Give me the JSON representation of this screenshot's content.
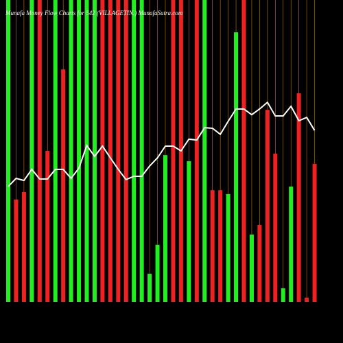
{
  "chart_data": {
    "type": "bar-line",
    "title": "Munafa Money Flow Charts for 542 (VILLAGETIN.) MunafaSutra.com",
    "categories": [
      null,
      null,
      null,
      null,
      null,
      null,
      null,
      null,
      null,
      null,
      null,
      null,
      null,
      null,
      null,
      null,
      null,
      null,
      null,
      null,
      null,
      null,
      null,
      null,
      null,
      null,
      null,
      null,
      null,
      null,
      null,
      null,
      null,
      null,
      null,
      null,
      null,
      null,
      null,
      null
    ],
    "values": [
      100,
      33.9,
      36.4,
      100,
      100,
      50,
      100,
      77,
      100,
      100,
      100,
      100,
      100,
      100,
      100,
      100,
      100,
      100,
      9.3,
      18.9,
      48.6,
      100,
      100,
      46.6,
      100,
      100,
      37,
      37,
      35.7,
      89.3,
      100,
      22.3,
      25.5,
      63.6,
      49.1,
      4.5,
      38.2,
      69.1,
      1.4,
      45.7
    ],
    "colors": [
      "#22ee22",
      "#ee2222",
      "#ee2222",
      "#22ee22",
      "#ee2222",
      "#ee2222",
      "#22ee22",
      "#ee2222",
      "#22ee22",
      "#22ee22",
      "#22ee22",
      "#22ee22",
      "#ee2222",
      "#ee2222",
      "#ee2222",
      "#ee2222",
      "#22ee22",
      "#22ee22",
      "#22ee22",
      "#22ee22",
      "#22ee22",
      "#ee2222",
      "#ee2222",
      "#22ee22",
      "#ee2222",
      "#22ee22",
      "#ee2222",
      "#ee2222",
      "#22ee22",
      "#22ee22",
      "#ee2222",
      "#22ee22",
      "#ee2222",
      "#ee2222",
      "#ee2222",
      "#22ee22",
      "#22ee22",
      "#ee2222",
      "#ee2222",
      "#ee2222"
    ],
    "line": {
      "color": "#ffffff",
      "values": [
        38.2,
        40.9,
        40.2,
        43.9,
        40.7,
        40.7,
        43.9,
        43.9,
        40.9,
        44.3,
        51.8,
        48.2,
        51.6,
        47.7,
        43.9,
        40.5,
        41.6,
        41.6,
        45,
        47.7,
        51.6,
        51.6,
        50,
        53.9,
        53.6,
        57.7,
        57.5,
        55.5,
        59.8,
        63.9,
        63.9,
        62,
        63.9,
        66.1,
        61.6,
        61.6,
        64.8,
        60,
        61.1,
        56.8
      ]
    },
    "ylim": [
      0,
      100
    ],
    "grid_color": "#cc7a00"
  }
}
